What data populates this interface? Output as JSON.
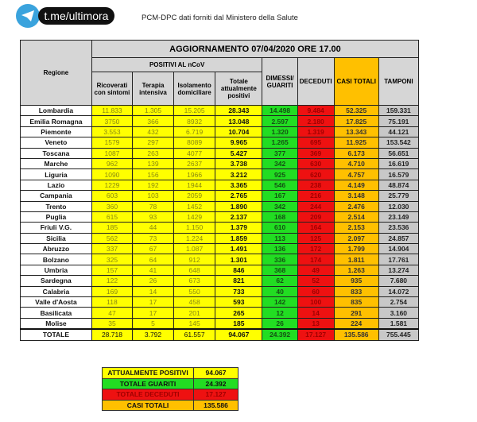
{
  "header": {
    "logo_text": "t.me/ultimora",
    "subtitle": "PCM-DPC dati forniti dal Ministero della Salute"
  },
  "table": {
    "title": "AGGIORNAMENTO 07/04/2020 ORE 17.00",
    "region_header": "Regione",
    "positivi_header": "POSITIVI AL nCoV",
    "columns": [
      "Ricoverati con sintomi",
      "Terapia intensiva",
      "Isolamento domiciliare",
      "Totale attualmente positivi",
      "DIMESSI/ GUARITI",
      "DECEDUTI",
      "CASI TOTALI",
      "TAMPONI"
    ],
    "rows": [
      [
        "Lombardia",
        "11.833",
        "1.305",
        "15.205",
        "28.343",
        "14.498",
        "9.484",
        "52.325",
        "159.331"
      ],
      [
        "Emilia Romagna",
        "3750",
        "366",
        "8932",
        "13.048",
        "2.597",
        "2.180",
        "17.825",
        "75.191"
      ],
      [
        "Piemonte",
        "3.553",
        "432",
        "6.719",
        "10.704",
        "1.320",
        "1.319",
        "13.343",
        "44.121"
      ],
      [
        "Veneto",
        "1579",
        "297",
        "8089",
        "9.965",
        "1.265",
        "695",
        "11.925",
        "153.542"
      ],
      [
        "Toscana",
        "1087",
        "263",
        "4077",
        "5.427",
        "377",
        "369",
        "6.173",
        "56.651"
      ],
      [
        "Marche",
        "962",
        "139",
        "2637",
        "3.738",
        "342",
        "630",
        "4.710",
        "16.619"
      ],
      [
        "Liguria",
        "1090",
        "156",
        "1966",
        "3.212",
        "925",
        "620",
        "4.757",
        "16.579"
      ],
      [
        "Lazio",
        "1229",
        "192",
        "1944",
        "3.365",
        "546",
        "238",
        "4.149",
        "48.874"
      ],
      [
        "Campania",
        "603",
        "103",
        "2059",
        "2.765",
        "167",
        "216",
        "3.148",
        "25.779"
      ],
      [
        "Trento",
        "360",
        "78",
        "1452",
        "1.890",
        "342",
        "244",
        "2.476",
        "12.030"
      ],
      [
        "Puglia",
        "615",
        "93",
        "1429",
        "2.137",
        "168",
        "209",
        "2.514",
        "23.149"
      ],
      [
        "Friuli V.G.",
        "185",
        "44",
        "1.150",
        "1.379",
        "610",
        "164",
        "2.153",
        "23.536"
      ],
      [
        "Sicilia",
        "562",
        "73",
        "1.224",
        "1.859",
        "113",
        "125",
        "2.097",
        "24.857"
      ],
      [
        "Abruzzo",
        "337",
        "67",
        "1.087",
        "1.491",
        "136",
        "172",
        "1.799",
        "14.904"
      ],
      [
        "Bolzano",
        "325",
        "64",
        "912",
        "1.301",
        "336",
        "174",
        "1.811",
        "17.761"
      ],
      [
        "Umbria",
        "157",
        "41",
        "648",
        "846",
        "368",
        "49",
        "1.263",
        "13.274"
      ],
      [
        "Sardegna",
        "122",
        "26",
        "673",
        "821",
        "62",
        "52",
        "935",
        "7.680"
      ],
      [
        "Calabria",
        "169",
        "14",
        "550",
        "733",
        "40",
        "60",
        "833",
        "14.072"
      ],
      [
        "Valle d'Aosta",
        "118",
        "17",
        "458",
        "593",
        "142",
        "100",
        "835",
        "2.754"
      ],
      [
        "Basilicata",
        "47",
        "17",
        "201",
        "265",
        "12",
        "14",
        "291",
        "3.160"
      ],
      [
        "Molise",
        "35",
        "5",
        "145",
        "185",
        "26",
        "13",
        "224",
        "1.581"
      ]
    ],
    "total": [
      "TOTALE",
      "28.718",
      "3.792",
      "61.557",
      "94.067",
      "24.392",
      "17.127",
      "135.586",
      "755.445"
    ]
  },
  "summary": [
    {
      "label": "ATTUALMENTE POSITIVI",
      "value": "94.067",
      "color": "#ffff00"
    },
    {
      "label": "TOTALE GUARITI",
      "value": "24.392",
      "color": "#22dd22"
    },
    {
      "label": "TOTALE DECEDUTI",
      "value": "17.127",
      "color": "#ee1111"
    },
    {
      "label": "CASI TOTALI",
      "value": "135.586",
      "color": "#ffc000"
    }
  ]
}
